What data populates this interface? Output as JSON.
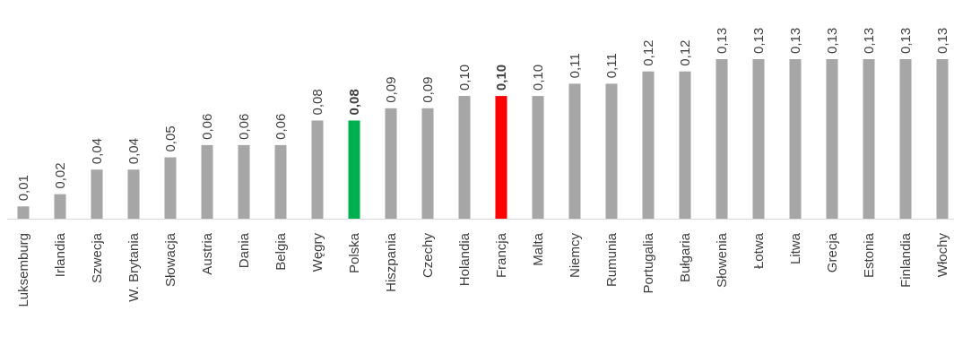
{
  "chart_data": {
    "type": "bar",
    "title": "",
    "xlabel": "",
    "ylabel": "",
    "ylim": [
      0,
      0.13
    ],
    "grid": false,
    "categories": [
      "Luksemburg",
      "Irlandia",
      "Szwecja",
      "W. Brytania",
      "Słowacja",
      "Austria",
      "Dania",
      "Belgia",
      "Węgry",
      "Polska",
      "Hiszpania",
      "Czechy",
      "Holandia",
      "Francja",
      "Malta",
      "Niemcy",
      "Rumunia",
      "Portugalia",
      "Bułgaria",
      "Słowenia",
      "Łotwa",
      "Litwa",
      "Grecja",
      "Estonia",
      "Finlandia",
      "Włochy"
    ],
    "values": [
      0.01,
      0.02,
      0.04,
      0.04,
      0.05,
      0.06,
      0.06,
      0.06,
      0.08,
      0.08,
      0.09,
      0.09,
      0.1,
      0.1,
      0.1,
      0.11,
      0.11,
      0.12,
      0.12,
      0.13,
      0.13,
      0.13,
      0.13,
      0.13,
      0.13,
      0.13
    ],
    "value_labels": [
      "0,01",
      "0,02",
      "0,04",
      "0,04",
      "0,05",
      "0,06",
      "0,06",
      "0,06",
      "0,08",
      "0,08",
      "0,09",
      "0,09",
      "0,10",
      "0,10",
      "0,10",
      "0,11",
      "0,11",
      "0,12",
      "0,12",
      "0,13",
      "0,13",
      "0,13",
      "0,13",
      "0,13",
      "0,13",
      "0,13"
    ],
    "highlights": {
      "Polska": "#00b050",
      "Francja": "#ff0000"
    },
    "colors": {
      "default_bar": "#a6a6a6",
      "axis": "#d9d9d9",
      "text": "#404040"
    }
  }
}
